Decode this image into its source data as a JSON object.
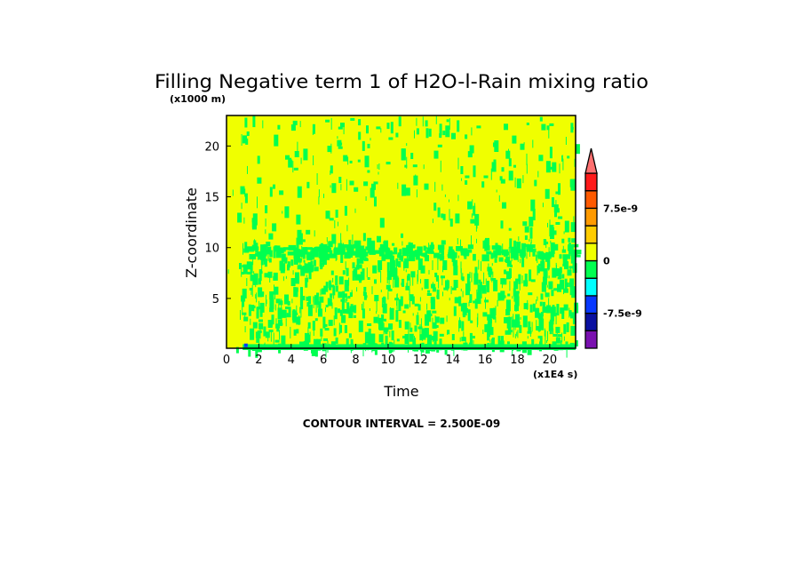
{
  "chart_data": {
    "type": "heatmap",
    "title": "Filling Negative term 1 of H2O-l-Rain mixing ratio",
    "xlabel": "Time",
    "ylabel": "Z-coordinate",
    "x_unit_label": "(x1E4 s)",
    "y_unit_label": "(x1000 m)",
    "xlim": [
      0,
      21.6
    ],
    "ylim": [
      0.1,
      23
    ],
    "x_ticks": [
      "0",
      "2",
      "4",
      "6",
      "8",
      "10",
      "12",
      "14",
      "16",
      "18",
      "20"
    ],
    "y_ticks": [
      "5",
      "10",
      "15",
      "20"
    ],
    "contour_interval_text": "CONTOUR INTERVAL = 2.500E-09",
    "colorbar": {
      "levels": [
        -1.25e-08,
        -1e-08,
        -7.5e-09,
        -5e-09,
        -2.5e-09,
        0,
        2.5e-09,
        5e-09,
        7.5e-09,
        1e-08,
        1.25e-08
      ],
      "colors": [
        "#7a10b0",
        "#0a10a0",
        "#0838ff",
        "#00ffff",
        "#00ff50",
        "#f0ff00",
        "#ffcc00",
        "#ff9a00",
        "#ff5a00",
        "#ff1a1a"
      ],
      "extend_color": "#ff7070",
      "tick_labels": [
        {
          "value": 7.5e-09,
          "label": "7.5e-9"
        },
        {
          "value": 0,
          "label": "0"
        },
        {
          "value": -7.5e-09,
          "label": "-7.5e-9"
        }
      ]
    },
    "field_summary": {
      "background_level_color": "#f0ff00",
      "patch_level_color": "#00ff50",
      "dense_patches_below_z": 10,
      "bottom_band_z": [
        0.1,
        0.5
      ],
      "minor_negative_near": {
        "x": 1.2,
        "y": 0.3,
        "color": "#0838ff"
      }
    }
  }
}
